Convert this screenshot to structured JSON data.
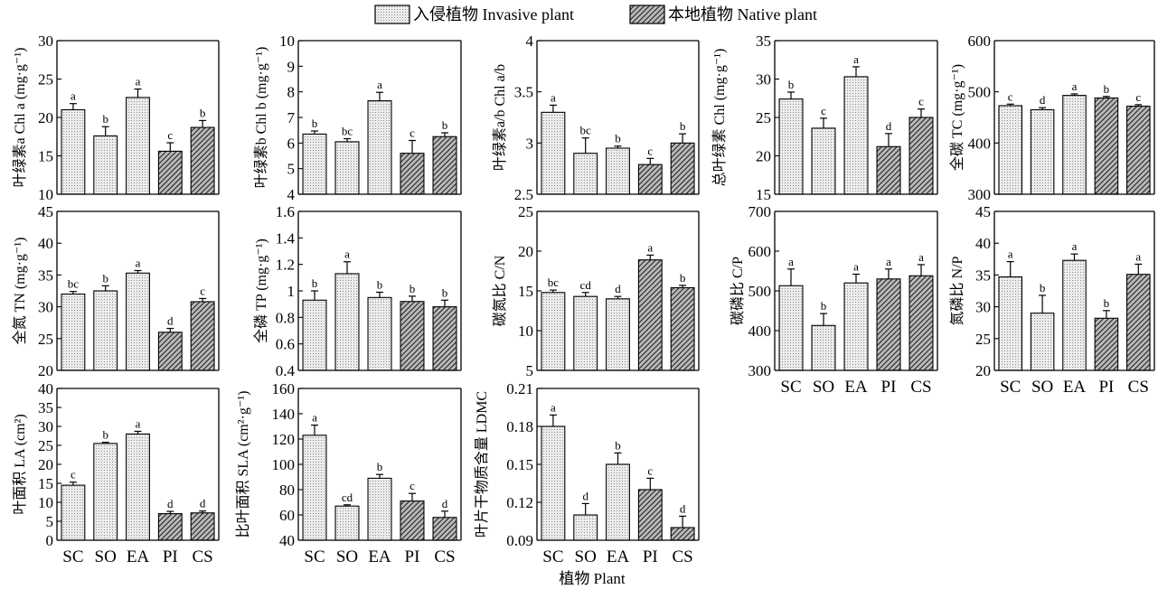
{
  "legend": {
    "invasive_label": "入侵植物 Invasive plant",
    "native_label": "本地植物 Native plant"
  },
  "xaxis_title": "植物 Plant",
  "chart_data": [
    {
      "id": "chla",
      "type": "bar",
      "ylabel": "叶绿素a Chl a (mg·g⁻¹)",
      "ylim": [
        10,
        30
      ],
      "yticks": [
        10,
        15,
        20,
        25,
        30
      ],
      "categories": [
        "SC",
        "SO",
        "EA",
        "PI",
        "CS"
      ],
      "groups": [
        "invasive",
        "invasive",
        "invasive",
        "native",
        "native"
      ],
      "values": [
        21,
        17.6,
        22.6,
        15.6,
        18.7
      ],
      "errors": [
        0.8,
        1.2,
        1.1,
        1.1,
        0.9
      ],
      "letters": [
        "a",
        "b",
        "a",
        "c",
        "b"
      ]
    },
    {
      "id": "chlb",
      "type": "bar",
      "ylabel": "叶绿素b Chl b (mg·g⁻¹)",
      "ylim": [
        4,
        10
      ],
      "yticks": [
        4,
        5,
        6,
        7,
        8,
        9,
        10
      ],
      "categories": [
        "SC",
        "SO",
        "EA",
        "PI",
        "CS"
      ],
      "groups": [
        "invasive",
        "invasive",
        "invasive",
        "native",
        "native"
      ],
      "values": [
        6.35,
        6.05,
        7.65,
        5.6,
        6.25
      ],
      "errors": [
        0.12,
        0.12,
        0.33,
        0.5,
        0.15
      ],
      "letters": [
        "b",
        "bc",
        "a",
        "c",
        "b"
      ]
    },
    {
      "id": "chlab",
      "type": "bar",
      "ylabel": "叶绿素a/b Chl a/b",
      "ylim": [
        2.5,
        4.0
      ],
      "yticks": [
        2.5,
        3.0,
        3.5,
        4.0
      ],
      "categories": [
        "SC",
        "SO",
        "EA",
        "PI",
        "CS"
      ],
      "groups": [
        "invasive",
        "invasive",
        "invasive",
        "native",
        "native"
      ],
      "values": [
        3.3,
        2.9,
        2.95,
        2.79,
        3.0
      ],
      "errors": [
        0.07,
        0.15,
        0.02,
        0.06,
        0.09
      ],
      "letters": [
        "a",
        "bc",
        "b",
        "c",
        "b"
      ]
    },
    {
      "id": "chl",
      "type": "bar",
      "ylabel": "总叶绿素 Chl (mg·g⁻¹)",
      "ylim": [
        15,
        35
      ],
      "yticks": [
        15,
        20,
        25,
        30,
        35
      ],
      "categories": [
        "SC",
        "SO",
        "EA",
        "PI",
        "CS"
      ],
      "groups": [
        "invasive",
        "invasive",
        "invasive",
        "native",
        "native"
      ],
      "values": [
        27.4,
        23.6,
        30.3,
        21.2,
        25.0
      ],
      "errors": [
        0.9,
        1.3,
        1.3,
        1.7,
        1.1
      ],
      "letters": [
        "b",
        "c",
        "a",
        "d",
        "c"
      ]
    },
    {
      "id": "tc",
      "type": "bar",
      "ylabel": "全碳 TC (mg·g⁻¹)",
      "ylim": [
        300,
        600
      ],
      "yticks": [
        300,
        400,
        500,
        600
      ],
      "categories": [
        "SC",
        "SO",
        "EA",
        "PI",
        "CS"
      ],
      "groups": [
        "invasive",
        "invasive",
        "invasive",
        "native",
        "native"
      ],
      "values": [
        473,
        465,
        493,
        488,
        472
      ],
      "errors": [
        3,
        4,
        3,
        3,
        3
      ],
      "letters": [
        "c",
        "d",
        "a",
        "b",
        "c"
      ]
    },
    {
      "id": "tn",
      "type": "bar",
      "ylabel": "全氮 TN (mg·g⁻¹)",
      "ylim": [
        20,
        45
      ],
      "yticks": [
        20,
        25,
        30,
        35,
        40,
        45
      ],
      "categories": [
        "SC",
        "SO",
        "EA",
        "PI",
        "CS"
      ],
      "groups": [
        "invasive",
        "invasive",
        "invasive",
        "native",
        "native"
      ],
      "values": [
        32,
        32.5,
        35.3,
        26,
        30.8
      ],
      "errors": [
        0.4,
        0.8,
        0.4,
        0.6,
        0.5
      ],
      "letters": [
        "bc",
        "b",
        "a",
        "d",
        "c"
      ]
    },
    {
      "id": "tp",
      "type": "bar",
      "ylabel": "全磷 TP (mg·g⁻¹)",
      "ylim": [
        0.4,
        1.6
      ],
      "yticks": [
        0.4,
        0.6,
        0.8,
        1.0,
        1.2,
        1.4,
        1.6
      ],
      "categories": [
        "SC",
        "SO",
        "EA",
        "PI",
        "CS"
      ],
      "groups": [
        "invasive",
        "invasive",
        "invasive",
        "native",
        "native"
      ],
      "values": [
        0.93,
        1.13,
        0.95,
        0.92,
        0.88
      ],
      "errors": [
        0.07,
        0.09,
        0.04,
        0.04,
        0.05
      ],
      "letters": [
        "b",
        "a",
        "b",
        "b",
        "b"
      ]
    },
    {
      "id": "cn",
      "type": "bar",
      "ylabel": "碳氮比 C/N",
      "ylim": [
        5,
        25
      ],
      "yticks": [
        5,
        10,
        15,
        20,
        25
      ],
      "categories": [
        "SC",
        "SO",
        "EA",
        "PI",
        "CS"
      ],
      "groups": [
        "invasive",
        "invasive",
        "invasive",
        "native",
        "native"
      ],
      "values": [
        14.8,
        14.3,
        14.0,
        18.9,
        15.4
      ],
      "errors": [
        0.3,
        0.5,
        0.3,
        0.6,
        0.3
      ],
      "letters": [
        "bc",
        "cd",
        "d",
        "a",
        "b"
      ]
    },
    {
      "id": "cp",
      "type": "bar",
      "ylabel": "碳磷比 C/P",
      "ylim": [
        300,
        700
      ],
      "yticks": [
        300,
        400,
        500,
        600,
        700
      ],
      "categories": [
        "SC",
        "SO",
        "EA",
        "PI",
        "CS"
      ],
      "groups": [
        "invasive",
        "invasive",
        "invasive",
        "native",
        "native"
      ],
      "values": [
        513,
        413,
        520,
        530,
        538
      ],
      "errors": [
        42,
        30,
        22,
        25,
        28
      ],
      "letters": [
        "a",
        "b",
        "a",
        "a",
        "a"
      ]
    },
    {
      "id": "np",
      "type": "bar",
      "ylabel": "氮磷比 N/P",
      "ylim": [
        20,
        45
      ],
      "yticks": [
        20,
        25,
        30,
        35,
        40,
        45
      ],
      "categories": [
        "SC",
        "SO",
        "EA",
        "PI",
        "CS"
      ],
      "groups": [
        "invasive",
        "invasive",
        "invasive",
        "native",
        "native"
      ],
      "values": [
        34.7,
        29,
        37.3,
        28.2,
        35.1
      ],
      "errors": [
        2.4,
        2.8,
        1.0,
        1.2,
        1.6
      ],
      "letters": [
        "a",
        "b",
        "a",
        "b",
        "a"
      ]
    },
    {
      "id": "la",
      "type": "bar",
      "ylabel": "叶面积 LA (cm²)",
      "ylim": [
        0,
        40
      ],
      "yticks": [
        0,
        5,
        10,
        15,
        20,
        25,
        30,
        35,
        40
      ],
      "categories": [
        "SC",
        "SO",
        "EA",
        "PI",
        "CS"
      ],
      "groups": [
        "invasive",
        "invasive",
        "invasive",
        "native",
        "native"
      ],
      "values": [
        14.5,
        25.5,
        28,
        7,
        7.2
      ],
      "errors": [
        0.8,
        0.3,
        0.7,
        0.6,
        0.5
      ],
      "letters": [
        "c",
        "b",
        "a",
        "d",
        "d"
      ]
    },
    {
      "id": "sla",
      "type": "bar",
      "ylabel": "比叶面积 SLA (cm²·g⁻¹)",
      "ylim": [
        40,
        160
      ],
      "yticks": [
        40,
        60,
        80,
        100,
        120,
        140,
        160
      ],
      "categories": [
        "SC",
        "SO",
        "EA",
        "PI",
        "CS"
      ],
      "groups": [
        "invasive",
        "invasive",
        "invasive",
        "native",
        "native"
      ],
      "values": [
        123,
        67,
        89,
        71,
        58
      ],
      "errors": [
        8,
        1,
        3,
        6,
        5
      ],
      "letters": [
        "a",
        "cd",
        "b",
        "c",
        "d"
      ]
    },
    {
      "id": "ldmc",
      "type": "bar",
      "ylabel": "叶片干物质含量 LDMC",
      "ylim": [
        0.09,
        0.21
      ],
      "yticks": [
        0.09,
        0.12,
        0.15,
        0.18,
        0.21
      ],
      "categories": [
        "SC",
        "SO",
        "EA",
        "PI",
        "CS"
      ],
      "groups": [
        "invasive",
        "invasive",
        "invasive",
        "native",
        "native"
      ],
      "values": [
        0.18,
        0.11,
        0.15,
        0.13,
        0.1
      ],
      "errors": [
        0.009,
        0.009,
        0.009,
        0.009,
        0.009
      ],
      "letters": [
        "a",
        "d",
        "b",
        "c",
        "d"
      ]
    }
  ]
}
